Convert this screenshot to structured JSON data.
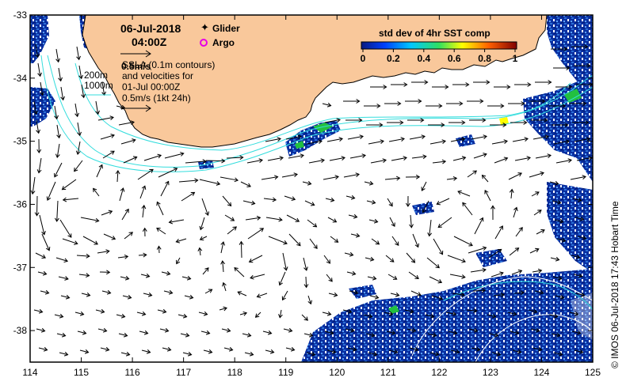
{
  "map": {
    "datetime": {
      "date": "06-Jul-2018",
      "time": "04:00Z"
    },
    "legend_glider": "Glider",
    "legend_argo": "Argo",
    "glider_color": "#e600e6",
    "argo_color": "#e600e6",
    "vector_scale_label": "0.5m/s",
    "sla_note": [
      "SSLA (0.1m contours)",
      "and velocities for",
      "01-Jul 00:00Z",
      "0.5m/s (1kt 24h)"
    ],
    "contour_labels": [
      "200m",
      "1000m"
    ],
    "colorbar": {
      "title": "std dev of 4hr SST comp",
      "ticks": [
        "0",
        "0.2",
        "0.4",
        "0.6",
        "0.8",
        "1"
      ],
      "range": [
        0,
        1
      ]
    },
    "side_label": "© IMOS 06-Jul-2018 17:43 Hobart Time",
    "x_ticks": [
      "114",
      "115",
      "116",
      "117",
      "118",
      "119",
      "120",
      "121",
      "122",
      "123",
      "124",
      "125"
    ],
    "y_ticks": [
      "-33",
      "-34",
      "-35",
      "-36",
      "-37",
      "-38"
    ],
    "extent": {
      "lon": [
        114,
        125
      ],
      "lat": [
        -38.5,
        -33
      ]
    },
    "colors": {
      "land": "#f9c89b",
      "sst_dense": "#0a2fa0",
      "isobath": "#33dddd",
      "vectors": "#000000"
    }
  }
}
